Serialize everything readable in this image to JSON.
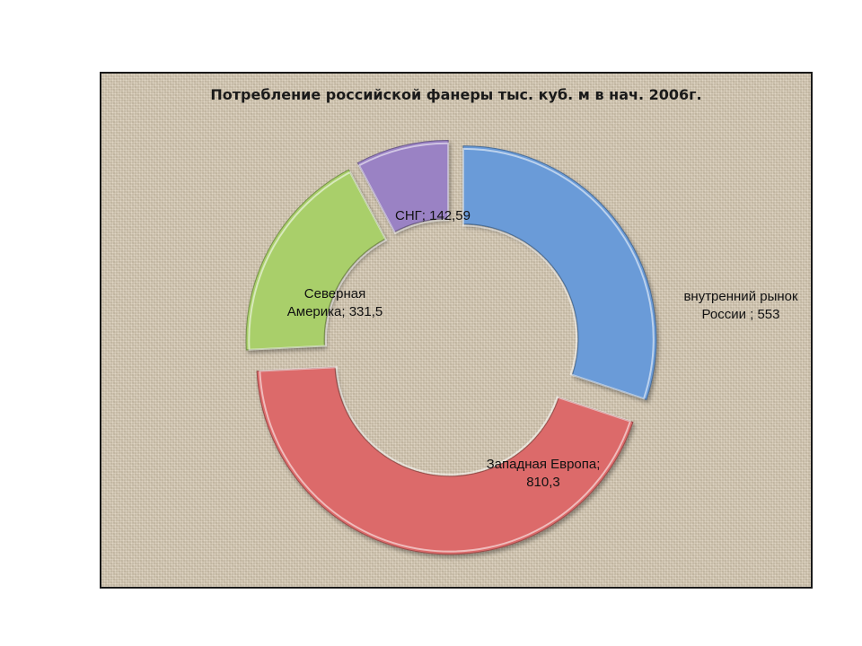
{
  "chart_data": {
    "type": "pie",
    "subtype": "exploded-doughnut",
    "title": "Потребление российской фанеры тыс. куб. м в нач. 2006г.",
    "series": [
      {
        "categories": [
          "внутренний рынок России",
          "Западная Европа",
          "Северная Америка",
          "СНГ"
        ],
        "values": [
          553,
          810.3,
          331.5,
          142.59
        ],
        "value_labels": [
          "553",
          "810,3",
          "331,5",
          "142,59"
        ],
        "colors": [
          "#6a9bd8",
          "#dc6b6a",
          "#a9cf6a",
          "#9a82c4"
        ]
      }
    ],
    "data_labels": [
      {
        "lines": [
          "внутренний рынок",
          "России ; 553"
        ]
      },
      {
        "lines": [
          "Западная Европа;",
          "810,3"
        ]
      },
      {
        "lines": [
          "Северная",
          "Америка; 331,5"
        ]
      },
      {
        "lines": [
          "СНГ; 142,59"
        ]
      }
    ],
    "legend": "none",
    "grid": false,
    "background": "#d8cbb5"
  }
}
